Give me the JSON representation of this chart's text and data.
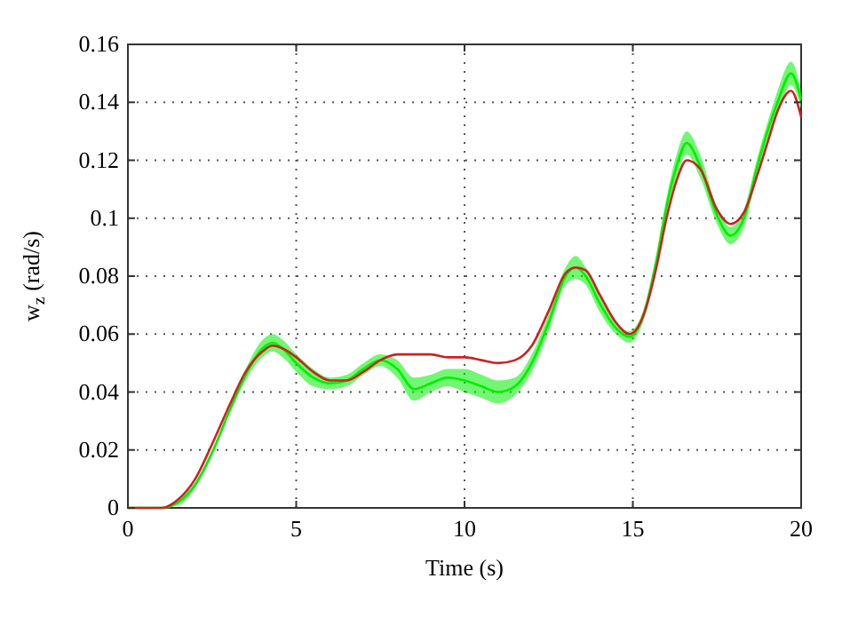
{
  "chart_data": {
    "type": "line",
    "xlabel": "Time (s)",
    "ylabel": "w$_{z}$ (rad/s)",
    "x": [
      0,
      1,
      1.5,
      2,
      2.5,
      3,
      3.5,
      4,
      4.3,
      4.6,
      5,
      5.5,
      6,
      6.5,
      7,
      7.5,
      8,
      8.5,
      9,
      9.5,
      10,
      10.5,
      11,
      11.5,
      12,
      12.5,
      13,
      13.3,
      13.6,
      14,
      14.5,
      14.9,
      15.3,
      15.7,
      16,
      16.3,
      16.6,
      17,
      17.5,
      17.9,
      18.3,
      18.7,
      19,
      19.3,
      19.7,
      20
    ],
    "series": [
      {
        "color": "#00ee00",
        "values": [
          0,
          0,
          0.002,
          0.008,
          0.019,
          0.033,
          0.046,
          0.055,
          0.057,
          0.055,
          0.05,
          0.045,
          0.043,
          0.044,
          0.048,
          0.051,
          0.048,
          0.041,
          0.043,
          0.045,
          0.044,
          0.042,
          0.04,
          0.042,
          0.05,
          0.064,
          0.08,
          0.083,
          0.08,
          0.071,
          0.062,
          0.059,
          0.066,
          0.085,
          0.104,
          0.118,
          0.126,
          0.118,
          0.101,
          0.094,
          0.1,
          0.118,
          0.13,
          0.14,
          0.15,
          0.141
        ],
        "lower": [
          0,
          0,
          0.001,
          0.007,
          0.018,
          0.032,
          0.044,
          0.052,
          0.054,
          0.052,
          0.047,
          0.042,
          0.041,
          0.042,
          0.046,
          0.049,
          0.045,
          0.037,
          0.04,
          0.042,
          0.04,
          0.038,
          0.036,
          0.039,
          0.047,
          0.061,
          0.077,
          0.079,
          0.077,
          0.068,
          0.06,
          0.057,
          0.064,
          0.082,
          0.101,
          0.114,
          0.122,
          0.114,
          0.098,
          0.091,
          0.097,
          0.115,
          0.127,
          0.136,
          0.146,
          0.138
        ],
        "upper": [
          0,
          0,
          0.003,
          0.009,
          0.02,
          0.034,
          0.048,
          0.058,
          0.06,
          0.058,
          0.053,
          0.048,
          0.045,
          0.046,
          0.05,
          0.053,
          0.051,
          0.045,
          0.046,
          0.048,
          0.048,
          0.046,
          0.044,
          0.045,
          0.053,
          0.067,
          0.083,
          0.087,
          0.083,
          0.074,
          0.064,
          0.061,
          0.068,
          0.088,
          0.107,
          0.122,
          0.13,
          0.122,
          0.104,
          0.097,
          0.103,
          0.121,
          0.133,
          0.144,
          0.154,
          0.144
        ]
      },
      {
        "color": "#cc2222",
        "values": [
          0,
          0,
          0.003,
          0.01,
          0.022,
          0.035,
          0.047,
          0.054,
          0.056,
          0.055,
          0.052,
          0.047,
          0.044,
          0.044,
          0.047,
          0.051,
          0.053,
          0.053,
          0.053,
          0.052,
          0.052,
          0.051,
          0.05,
          0.051,
          0.056,
          0.068,
          0.081,
          0.083,
          0.082,
          0.074,
          0.064,
          0.06,
          0.066,
          0.083,
          0.1,
          0.113,
          0.12,
          0.117,
          0.103,
          0.098,
          0.102,
          0.115,
          0.126,
          0.137,
          0.144,
          0.135
        ]
      }
    ],
    "xlim": [
      0,
      20
    ],
    "xticks": [
      0,
      5,
      10,
      15,
      20
    ],
    "ylim": [
      0,
      0.16
    ],
    "yticks": [
      0,
      0.02,
      0.04,
      0.06,
      0.08,
      0.1,
      0.12,
      0.14,
      0.16
    ],
    "grid": true,
    "line_style": "solid"
  }
}
